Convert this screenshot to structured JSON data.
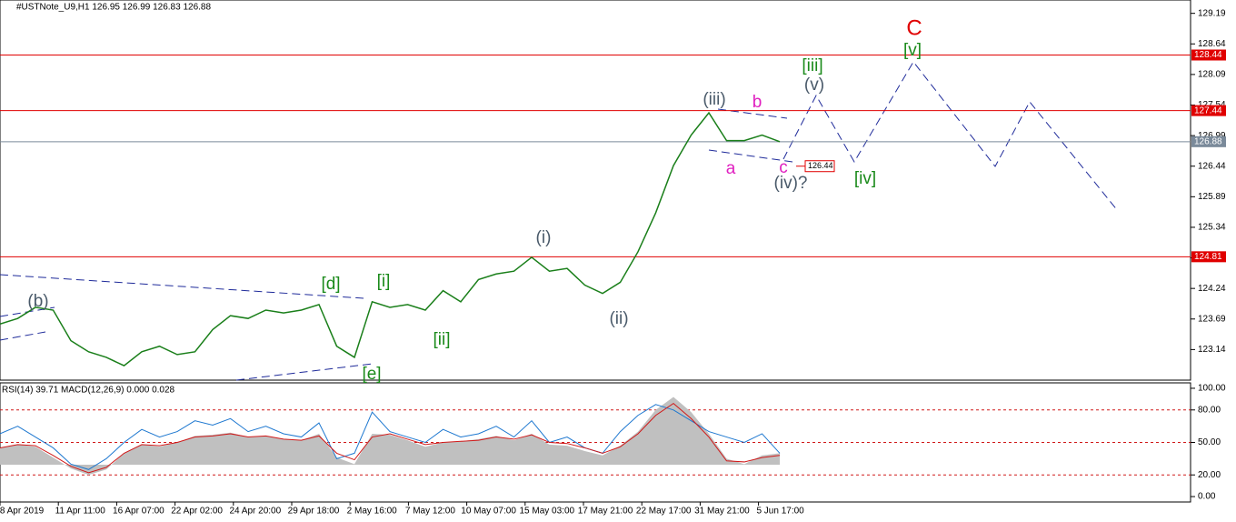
{
  "header": {
    "symbol_line": "#USTNote_U9,H1  126.95 126.99 126.83 126.88",
    "indicator_line": "RSI(14) 39.71 MACD(12,26,9) 0.000 0.028"
  },
  "chart_data": {
    "type": "line",
    "price": {
      "color": "#1a7f1a",
      "ylim": [
        122.59,
        129.43
      ],
      "yticks": [
        123.14,
        123.69,
        124.24,
        124.79,
        125.34,
        125.89,
        126.44,
        126.99,
        127.54,
        128.09,
        128.64,
        129.19
      ],
      "values": [
        123.6,
        123.7,
        123.9,
        123.85,
        123.3,
        123.1,
        123.0,
        122.85,
        123.1,
        123.2,
        123.05,
        123.1,
        123.5,
        123.75,
        123.7,
        123.85,
        123.8,
        123.85,
        123.95,
        123.2,
        123.0,
        124.0,
        123.9,
        123.95,
        123.85,
        124.2,
        124.0,
        124.4,
        124.5,
        124.55,
        124.8,
        124.55,
        124.6,
        124.3,
        124.15,
        124.35,
        124.9,
        125.6,
        126.45,
        127.0,
        127.4,
        126.9,
        126.9,
        127.0,
        126.88
      ]
    },
    "levels": [
      {
        "value": 128.44,
        "label": "128.44"
      },
      {
        "value": 127.44,
        "label": "127.44"
      },
      {
        "value": 124.81,
        "label": "124.81"
      }
    ],
    "level_color": "#e00000",
    "current": {
      "value": 126.88,
      "label": "126.88"
    },
    "target": {
      "value": 126.44,
      "label": "126.44"
    },
    "wave_labels": [
      {
        "text": "C",
        "color": "#e00000"
      },
      {
        "text": "[v]",
        "color": "#1a8a1a"
      },
      {
        "text": "[iii]",
        "color": "#1a8a1a"
      },
      {
        "text": "(v)",
        "color": "#4a5a6a"
      },
      {
        "text": "(iii)",
        "color": "#4a5a6a"
      },
      {
        "text": "b",
        "color": "#e020c0"
      },
      {
        "text": "a",
        "color": "#e020c0"
      },
      {
        "text": "c",
        "color": "#e020c0"
      },
      {
        "text": "(iv)?",
        "color": "#4a5a6a"
      },
      {
        "text": "[iv]",
        "color": "#1a8a1a"
      },
      {
        "text": "(i)",
        "color": "#4a5a6a"
      },
      {
        "text": "(ii)",
        "color": "#4a5a6a"
      },
      {
        "text": "[d]",
        "color": "#1a8a1a"
      },
      {
        "text": "[i]",
        "color": "#1a8a1a"
      },
      {
        "text": "[ii]",
        "color": "#1a8a1a"
      },
      {
        "text": "[e]",
        "color": "#1a8a1a"
      },
      {
        "text": "(b)",
        "color": "#4a5a6a"
      }
    ],
    "time_labels": [
      "8 Apr 2019",
      "11 Apr 11:00",
      "16 Apr 07:00",
      "22 Apr 02:00",
      "24 Apr 20:00",
      "29 Apr 18:00",
      "2 May 16:00",
      "7 May 12:00",
      "10 May 07:00",
      "15 May 03:00",
      "17 May 21:00",
      "22 May 17:00",
      "31 May 21:00",
      "5 Jun 17:00"
    ],
    "indicator": {
      "ylim": [
        -5,
        105
      ],
      "yticks": [
        {
          "value": 0,
          "label": "0.00"
        },
        {
          "value": 20,
          "label": "20.00"
        },
        {
          "value": 50,
          "label": "50.00"
        },
        {
          "value": 80,
          "label": "80.00"
        },
        {
          "value": 100,
          "label": "100.00"
        }
      ],
      "levels": [
        20,
        50,
        80
      ],
      "rsi": {
        "color": "#1e78d0",
        "values": [
          58,
          65,
          55,
          45,
          30,
          25,
          35,
          50,
          62,
          55,
          60,
          70,
          66,
          72,
          60,
          65,
          58,
          55,
          68,
          35,
          40,
          78,
          60,
          55,
          50,
          62,
          55,
          58,
          65,
          55,
          70,
          50,
          55,
          45,
          40,
          60,
          75,
          85,
          80,
          70,
          60,
          55,
          50,
          58,
          40
        ]
      },
      "signal": {
        "color": "#d01818",
        "values": [
          45,
          48,
          47,
          38,
          28,
          22,
          27,
          40,
          48,
          47,
          50,
          55,
          56,
          58,
          55,
          56,
          53,
          52,
          56,
          40,
          34,
          55,
          58,
          53,
          48,
          50,
          51,
          52,
          55,
          53,
          57,
          50,
          49,
          45,
          40,
          46,
          58,
          75,
          86,
          72,
          55,
          33,
          32,
          36,
          38
        ]
      },
      "macd": {
        "color": "#c0c0c0",
        "values": [
          45,
          48,
          46,
          36,
          26,
          20,
          25,
          40,
          48,
          46,
          50,
          56,
          57,
          59,
          55,
          56,
          53,
          52,
          58,
          36,
          30,
          58,
          57,
          52,
          46,
          50,
          51,
          53,
          56,
          52,
          58,
          48,
          47,
          42,
          38,
          47,
          60,
          80,
          92,
          78,
          58,
          35,
          30,
          38,
          40
        ]
      }
    }
  }
}
